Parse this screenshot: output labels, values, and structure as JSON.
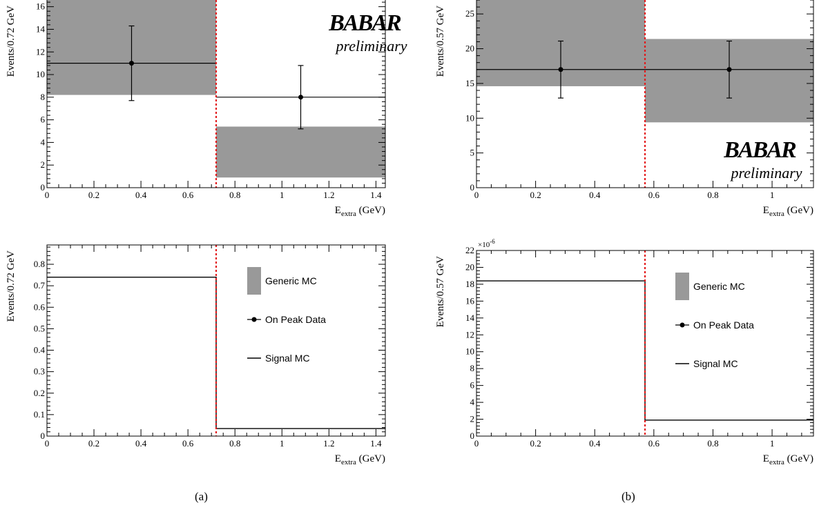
{
  "panel_labels": {
    "a": "(a)",
    "b": "(b)"
  },
  "colors": {
    "generic_mc": "#999999",
    "cut_line": "#e31a1c",
    "data": "#000000",
    "signal": "#000000"
  },
  "chart_data": [
    {
      "id": "a-top",
      "type": "bar",
      "xlabel_main": "E",
      "xlabel_sub": "extra",
      "xlabel_unit": " (GeV)",
      "ylabel": "Events/0.72 GeV",
      "xlim": [
        0,
        1.44
      ],
      "ylim": [
        0,
        17.2
      ],
      "xticks": [
        "0",
        "0.2",
        "0.4",
        "0.6",
        "0.8",
        "1",
        "1.2",
        "1.4"
      ],
      "xtick_values": [
        0,
        0.2,
        0.4,
        0.6,
        0.8,
        1.0,
        1.2,
        1.4
      ],
      "yticks": [
        "0",
        "2",
        "4",
        "6",
        "8",
        "10",
        "12",
        "14",
        "16"
      ],
      "ytick_values": [
        0,
        2,
        4,
        6,
        8,
        10,
        12,
        14,
        16
      ],
      "cut": 0.72,
      "bins": [
        [
          0,
          0.72
        ],
        [
          0.72,
          1.44
        ]
      ],
      "generic_mc_band": [
        [
          8.2,
          17.2
        ],
        [
          0.9,
          5.4
        ]
      ],
      "data": [
        {
          "x": 0.36,
          "y": 11,
          "err_low": 3.3,
          "err_high": 3.3
        },
        {
          "x": 1.08,
          "y": 8,
          "err_low": 2.8,
          "err_high": 2.8
        }
      ],
      "watermark": {
        "logo": "BABAR",
        "text": "preliminary",
        "position": "top-right"
      }
    },
    {
      "id": "b-top",
      "type": "bar",
      "xlabel_main": "E",
      "xlabel_sub": "extra",
      "xlabel_unit": " (GeV)",
      "ylabel": "Events/0.57 GeV",
      "xlim": [
        0,
        1.14
      ],
      "ylim": [
        0,
        28
      ],
      "xticks": [
        "0",
        "0.2",
        "0.4",
        "0.6",
        "0.8",
        "1"
      ],
      "xtick_values": [
        0,
        0.2,
        0.4,
        0.6,
        0.8,
        1.0
      ],
      "yticks": [
        "0",
        "5",
        "10",
        "15",
        "20",
        "25"
      ],
      "ytick_values": [
        0,
        5,
        10,
        15,
        20,
        25
      ],
      "cut": 0.57,
      "bins": [
        [
          0,
          0.57
        ],
        [
          0.57,
          1.14
        ]
      ],
      "generic_mc_band": [
        [
          14.6,
          28
        ],
        [
          9.4,
          21.4
        ]
      ],
      "data": [
        {
          "x": 0.285,
          "y": 17,
          "err_low": 4.1,
          "err_high": 4.1
        },
        {
          "x": 0.855,
          "y": 17,
          "err_low": 4.1,
          "err_high": 4.1
        }
      ],
      "watermark": {
        "logo": "BABAR",
        "text": "preliminary",
        "position": "bottom-right"
      }
    },
    {
      "id": "a-bottom",
      "type": "line",
      "xlabel_main": "E",
      "xlabel_sub": "extra",
      "xlabel_unit": " (GeV)",
      "ylabel": "Events/0.72 GeV",
      "xlim": [
        0,
        1.44
      ],
      "ylim": [
        0,
        0.89
      ],
      "xticks": [
        "0",
        "0.2",
        "0.4",
        "0.6",
        "0.8",
        "1",
        "1.2",
        "1.4"
      ],
      "xtick_values": [
        0,
        0.2,
        0.4,
        0.6,
        0.8,
        1.0,
        1.2,
        1.4
      ],
      "yticks": [
        "0",
        "0.1",
        "0.2",
        "0.3",
        "0.4",
        "0.5",
        "0.6",
        "0.7",
        "0.8"
      ],
      "ytick_values": [
        0,
        0.1,
        0.2,
        0.3,
        0.4,
        0.5,
        0.6,
        0.7,
        0.8
      ],
      "cut": 0.72,
      "bins": [
        [
          0,
          0.72
        ],
        [
          0.72,
          1.44
        ]
      ],
      "signal_mc": [
        0.74,
        0.035
      ],
      "legend": {
        "position": "right",
        "entries": [
          "Generic MC",
          "On Peak Data",
          "Signal MC"
        ]
      }
    },
    {
      "id": "b-bottom",
      "type": "line",
      "xlabel_main": "E",
      "xlabel_sub": "extra",
      "xlabel_unit": " (GeV)",
      "ylabel": "Events/0.57 GeV",
      "xlim": [
        0,
        1.14
      ],
      "ylim": [
        0,
        22
      ],
      "multiplier_base": "×10",
      "multiplier_exp": "-6",
      "xticks": [
        "0",
        "0.2",
        "0.4",
        "0.6",
        "0.8",
        "1"
      ],
      "xtick_values": [
        0,
        0.2,
        0.4,
        0.6,
        0.8,
        1.0
      ],
      "yticks": [
        "0",
        "2",
        "4",
        "6",
        "8",
        "10",
        "12",
        "14",
        "16",
        "18",
        "20",
        "22"
      ],
      "ytick_values": [
        0,
        2,
        4,
        6,
        8,
        10,
        12,
        14,
        16,
        18,
        20,
        22
      ],
      "cut": 0.57,
      "bins": [
        [
          0,
          0.57
        ],
        [
          0.57,
          1.14
        ]
      ],
      "signal_mc": [
        18.4,
        1.9
      ],
      "legend": {
        "position": "right",
        "entries": [
          "Generic MC",
          "On Peak Data",
          "Signal MC"
        ]
      }
    }
  ]
}
